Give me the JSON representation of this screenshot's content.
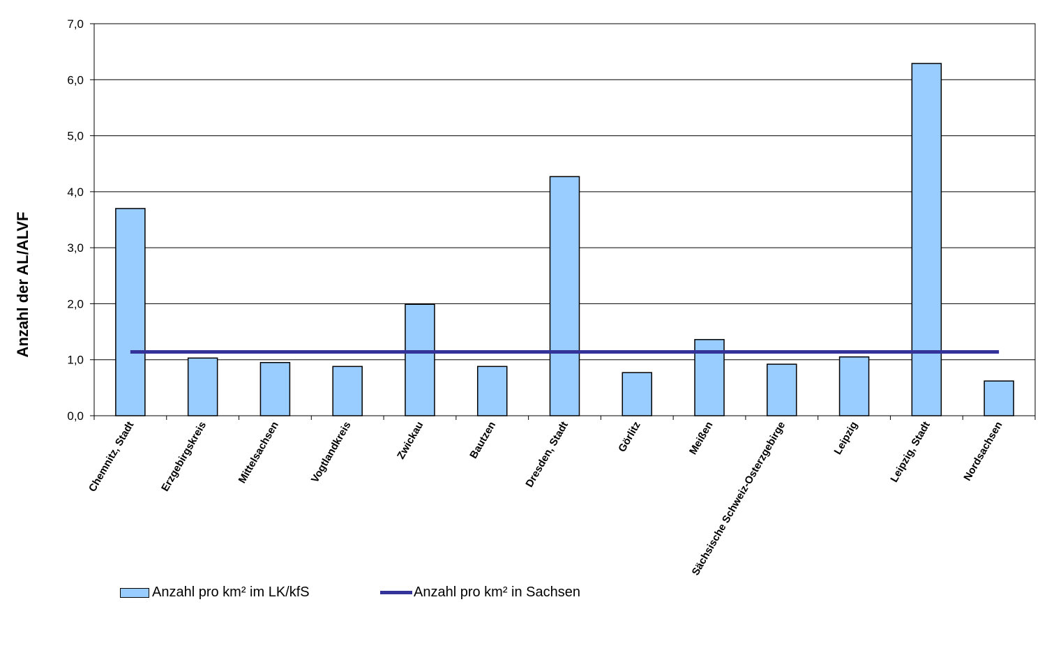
{
  "chart_data": {
    "type": "bar",
    "ylabel": "Anzahl der AL/ALVF",
    "ylim": [
      0,
      7
    ],
    "yticks": [
      "0,0",
      "1,0",
      "2,0",
      "3,0",
      "4,0",
      "5,0",
      "6,0",
      "7,0"
    ],
    "grid": true,
    "legend_position": "bottom",
    "categories": [
      "Chemnitz, Stadt",
      "Erzgebirgskreis",
      "Mittelsachsen",
      "Vogtlandkreis",
      "Zwickau",
      "Bautzen",
      "Dresden, Stadt",
      "Görlitz",
      "Meißen",
      "Sächsische Schweiz-Osterzgebirge",
      "Leipzig",
      "Leipzig, Stadt",
      "Nordsachsen"
    ],
    "series": [
      {
        "name": "Anzahl pro km² im LK/kfS",
        "type": "bar",
        "color": "#99ccff",
        "values": [
          3.7,
          1.03,
          0.95,
          0.88,
          1.99,
          0.88,
          4.27,
          0.77,
          1.36,
          0.92,
          1.05,
          6.29,
          0.62
        ]
      },
      {
        "name": "Anzahl pro km² in Sachsen",
        "type": "line",
        "color": "#333399",
        "values": [
          1.14,
          1.14,
          1.14,
          1.14,
          1.14,
          1.14,
          1.14,
          1.14,
          1.14,
          1.14,
          1.14,
          1.14,
          1.14
        ]
      }
    ]
  }
}
